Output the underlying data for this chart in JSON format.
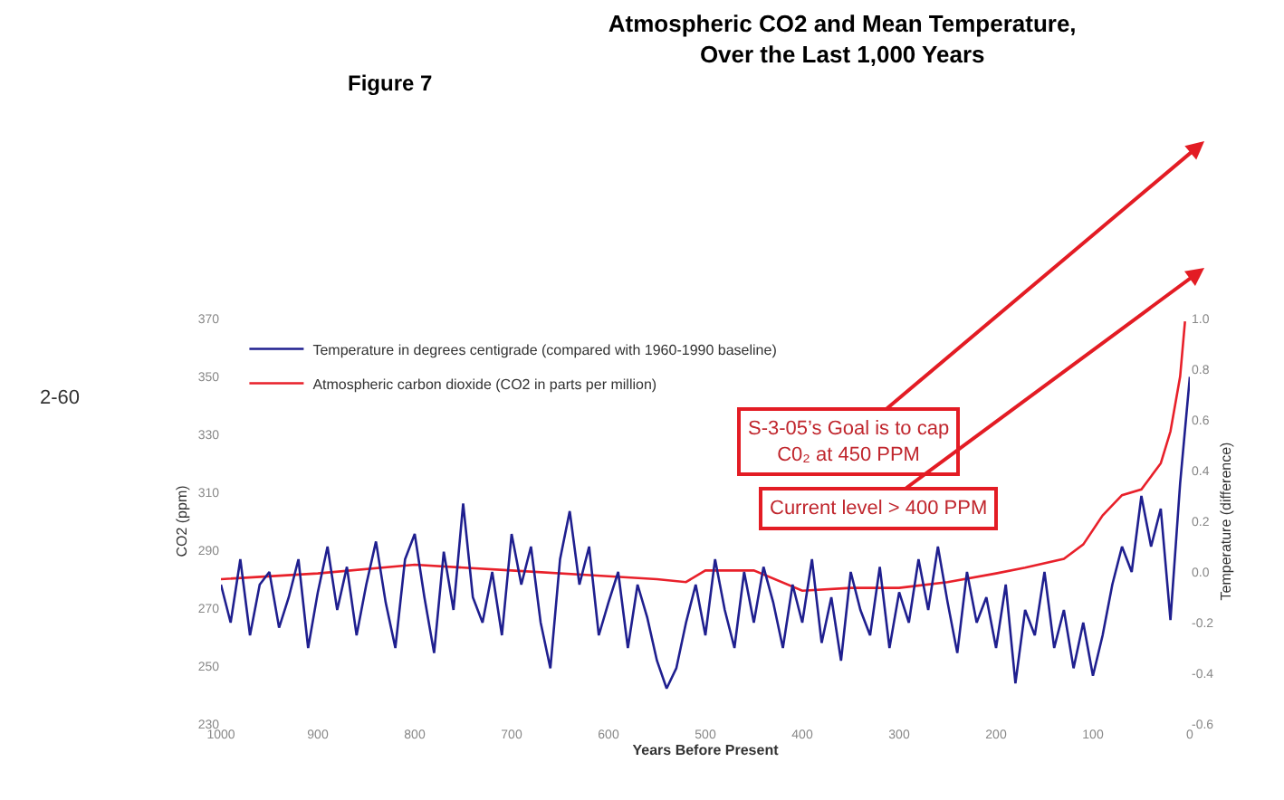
{
  "chart_data": {
    "type": "line",
    "title": "Atmospheric CO2 and Mean Temperature,\nOver the Last 1,000 Years",
    "xlabel": "Years Before Present",
    "ylabel": "CO2 (ppm)",
    "y2label": "Temperature (difference)",
    "annotations": [
      "Figure 7",
      "2-60",
      "S-3-05’s Goal is to cap\nC0₂ at 450 PPM",
      "Current level > 400 PPM"
    ],
    "xlim": [
      1000,
      0
    ],
    "xticks": [
      1000,
      900,
      800,
      700,
      600,
      500,
      400,
      300,
      200,
      100,
      0
    ],
    "ylim": [
      230,
      370
    ],
    "yticks": [
      230,
      250,
      270,
      290,
      310,
      330,
      350,
      370
    ],
    "y2lim": [
      -0.6,
      1.0
    ],
    "y2ticks": [
      {
        "value": -0.6,
        "label": "-0.6"
      },
      {
        "value": -0.4,
        "label": "-0.4"
      },
      {
        "value": -0.2,
        "label": "-0.2"
      },
      {
        "value": 0,
        "label": "0.0"
      },
      {
        "value": 0.2,
        "label": "0.2"
      },
      {
        "value": 0.4,
        "label": "0.4"
      },
      {
        "value": 0.6,
        "label": "0.6"
      },
      {
        "value": 0.8,
        "label": "0.8"
      },
      {
        "value": 1,
        "label": "1.0"
      }
    ],
    "legend": "top left",
    "marker": "none",
    "line_style": "solid",
    "series": [
      {
        "name": "Temperature in degrees centigrade (compared with 1960-1990 baseline)",
        "color": "#1f1f8f",
        "axis": "y2",
        "x": [
          1000,
          990,
          980,
          970,
          960,
          950,
          940,
          930,
          920,
          910,
          900,
          890,
          880,
          870,
          860,
          850,
          840,
          830,
          820,
          810,
          800,
          790,
          780,
          770,
          760,
          750,
          740,
          730,
          720,
          710,
          700,
          690,
          680,
          670,
          660,
          650,
          640,
          630,
          620,
          610,
          600,
          590,
          580,
          570,
          560,
          550,
          540,
          530,
          520,
          510,
          500,
          490,
          480,
          470,
          460,
          450,
          440,
          430,
          420,
          410,
          400,
          390,
          380,
          370,
          360,
          350,
          340,
          330,
          320,
          310,
          300,
          290,
          280,
          270,
          260,
          250,
          240,
          230,
          220,
          210,
          200,
          190,
          180,
          170,
          160,
          150,
          140,
          130,
          120,
          110,
          100,
          90,
          80,
          70,
          60,
          50,
          40,
          30,
          20,
          10,
          0
        ],
        "values": [
          -0.05,
          -0.2,
          0.05,
          -0.25,
          -0.05,
          0.0,
          -0.22,
          -0.1,
          0.05,
          -0.3,
          -0.08,
          0.1,
          -0.15,
          0.02,
          -0.25,
          -0.05,
          0.12,
          -0.12,
          -0.3,
          0.05,
          0.15,
          -0.1,
          -0.32,
          0.08,
          -0.15,
          0.27,
          -0.1,
          -0.2,
          0.0,
          -0.25,
          0.15,
          -0.05,
          0.1,
          -0.2,
          -0.38,
          0.05,
          0.24,
          -0.05,
          0.1,
          -0.25,
          -0.12,
          0.0,
          -0.3,
          -0.05,
          -0.18,
          -0.35,
          -0.46,
          -0.38,
          -0.2,
          -0.05,
          -0.25,
          0.05,
          -0.15,
          -0.3,
          0.0,
          -0.2,
          0.02,
          -0.12,
          -0.3,
          -0.05,
          -0.2,
          0.05,
          -0.28,
          -0.1,
          -0.35,
          0.0,
          -0.15,
          -0.25,
          0.02,
          -0.3,
          -0.08,
          -0.2,
          0.05,
          -0.15,
          0.1,
          -0.12,
          -0.32,
          0.0,
          -0.2,
          -0.1,
          -0.3,
          -0.05,
          -0.44,
          -0.15,
          -0.25,
          0.0,
          -0.3,
          -0.15,
          -0.38,
          -0.2,
          -0.41,
          -0.25,
          -0.05,
          0.1,
          0.0,
          0.3,
          0.1,
          0.25,
          -0.19,
          0.35,
          0.77
        ]
      },
      {
        "name": "Atmospheric carbon dioxide (CO2 in parts per million)",
        "color": "#e8202a",
        "x": [
          1000,
          900,
          800,
          700,
          600,
          550,
          520,
          500,
          450,
          400,
          350,
          300,
          250,
          200,
          170,
          130,
          110,
          90,
          70,
          50,
          30,
          20,
          10,
          5
        ],
        "values": [
          280,
          282,
          285,
          283,
          281,
          280,
          279,
          283,
          283,
          276,
          277,
          277,
          279,
          282,
          284,
          287,
          292,
          302,
          309,
          311,
          320,
          331,
          350,
          369
        ]
      }
    ]
  }
}
